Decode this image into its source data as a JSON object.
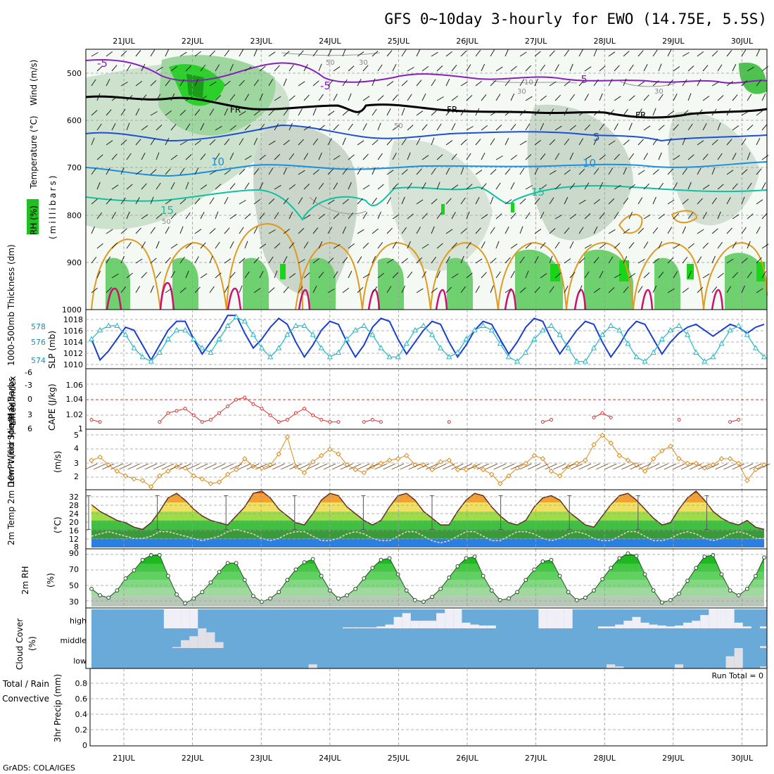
{
  "title": "GFS 0~10day 3-hourly for EWO (14.75E, 5.5S)",
  "credit": "GrADS: COLA/IGES",
  "dates": [
    "21JUL",
    "22JUL",
    "23JUL",
    "24JUL",
    "25JUL",
    "26JUL",
    "27JUL",
    "28JUL",
    "29JUL",
    "30JUL"
  ],
  "colors": {
    "purple": "#8a1fc0",
    "fr": "#000000",
    "blue5": "#1e4fd6",
    "blue10": "#1a8fe0",
    "teal15": "#10c0a0",
    "orange": "#e09a20",
    "magenta": "#cc1070",
    "rh_dark": "#20c020",
    "rh_mid": "#7cd67c",
    "rh_light": "#dcefdc",
    "slp": "#1a3fd0",
    "thick": "#20b8c8",
    "li": "#e03030",
    "wind": "#e08a1a",
    "cloud": "#6aaad8",
    "cloudlight": "#f0eef6"
  },
  "panels": {
    "upper": {
      "ylabel_rh": "RH (%)",
      "ylabel_temp": "Temperature (°C)",
      "ylabel_wind": "Wind (m/s)",
      "ylabel_units": "(millibars)",
      "yticks": [
        "500",
        "600",
        "700",
        "800",
        "900",
        "1000"
      ],
      "contour_labels": [
        "-5",
        "-5",
        "-5",
        "FR",
        "FR",
        "FR",
        "5",
        "10",
        "10",
        "15",
        "15",
        "50",
        "30",
        "10",
        "30",
        "50",
        "50",
        "30"
      ]
    },
    "thickness": {
      "ylabel_left": "1000-500mb Thickness (dm)",
      "ylabel_right": "SLP (mb)",
      "left_ticks": [
        "578",
        "576",
        "574"
      ],
      "right_ticks": [
        "1018",
        "1016",
        "1014",
        "1012",
        "1010"
      ]
    },
    "cape": {
      "ylabel_left": "Lifted Index",
      "ylabel_right": "CAPE (J/kg)",
      "left_ticks": [
        "-6",
        "-3",
        "0",
        "3",
        "6"
      ],
      "right_ticks": [
        "1.06",
        "1.04",
        "1.02",
        "1"
      ]
    },
    "wind10": {
      "ylabel": "10m Wind Speed & Barbs",
      "units": "(m/s)",
      "ticks": [
        "5",
        "4",
        "3",
        "2"
      ]
    },
    "temp2m": {
      "ylabel": "2m Temp 2m DewPt (6hr Min/Max)",
      "units": "(°C)",
      "ticks": [
        "32",
        "28",
        "24",
        "20",
        "16",
        "12",
        "8"
      ]
    },
    "rh2m": {
      "ylabel": "2m RH",
      "units": "(%)",
      "ticks": [
        "90",
        "70",
        "50",
        "30"
      ]
    },
    "cloud": {
      "ylabel": "Cloud Cover",
      "units": "(%)",
      "levels": [
        "high",
        "middle",
        "low"
      ]
    },
    "precip": {
      "ylabel_1": "Total / Rain",
      "ylabel_2": "Convective",
      "ylabel_3": "3hr Precip (mm)",
      "ticks": [
        "0.8",
        "0.6",
        "0.4",
        "0.2",
        "0"
      ],
      "run_total": "Run Total = 0"
    }
  },
  "chart_data": [
    {
      "type": "line",
      "title": "1000-500mb Thickness / SLP",
      "x_start": "20JUL 12Z",
      "x_step_hours": 3,
      "series": [
        {
          "name": "SLP (mb)",
          "ylim": [
            1010,
            1019
          ],
          "values": [
            1014.5,
            1011.0,
            1012.5,
            1014.5,
            1016.5,
            1016.0,
            1013.5,
            1011.0,
            1013.5,
            1016.0,
            1017.5,
            1017.5,
            1014.5,
            1012.0,
            1014.0,
            1016.0,
            1018.5,
            1018.5,
            1015.5,
            1013.0,
            1014.5,
            1016.5,
            1018.0,
            1017.0,
            1014.0,
            1011.5,
            1013.5,
            1016.0,
            1017.5,
            1017.0,
            1014.0,
            1011.5,
            1013.5,
            1016.5,
            1018.0,
            1017.5,
            1014.5,
            1012.0,
            1014.0,
            1016.0,
            1017.5,
            1017.0,
            1014.0,
            1011.5,
            1013.5,
            1016.0,
            1017.5,
            1017.0,
            1014.5,
            1012.0,
            1014.0,
            1016.5,
            1018.0,
            1017.5,
            1014.5,
            1012.0,
            1014.0,
            1016.0,
            1017.5,
            1017.0,
            1014.0,
            1011.5,
            1013.5,
            1016.0,
            1017.5,
            1017.0,
            1014.5,
            1012.0,
            1014.0,
            1015.5,
            1016.5,
            1017.0,
            1016.0,
            1015.0,
            1016.0,
            1017.0,
            1016.5,
            1015.5,
            1016.5,
            1017.0
          ]
        },
        {
          "name": "Thickness (dm)",
          "ylim": [
            573.5,
            579.5
          ],
          "values": [
            576.5,
            577.5,
            578.0,
            578.0,
            577.0,
            575.5,
            574.5,
            574.0,
            575.0,
            576.5,
            577.5,
            577.5,
            576.5,
            575.5,
            575.0,
            576.5,
            578.0,
            579.0,
            578.5,
            577.0,
            575.5,
            574.5,
            575.5,
            577.0,
            578.0,
            578.0,
            577.0,
            575.5,
            574.5,
            575.0,
            576.5,
            577.5,
            578.0,
            577.0,
            575.5,
            574.5,
            574.5,
            576.0,
            577.5,
            578.0,
            577.0,
            575.5,
            574.5,
            575.0,
            576.5,
            577.5,
            578.0,
            577.5,
            576.0,
            574.5,
            574.0,
            575.0,
            576.5,
            577.5,
            578.0,
            577.0,
            575.5,
            574.0,
            574.0,
            575.5,
            577.0,
            578.0,
            577.5,
            576.0,
            574.5,
            574.0,
            575.0,
            576.5,
            577.5,
            578.0,
            577.0,
            575.0,
            574.0,
            574.5,
            576.0,
            577.5,
            578.0,
            577.0,
            575.5,
            574.5
          ]
        }
      ]
    },
    {
      "type": "line",
      "title": "Lifted Index",
      "x_start": "20JUL 12Z",
      "x_step_hours": 3,
      "ylim": [
        6,
        -6
      ],
      "values": [
        4.5,
        5.0,
        6.0,
        6.0,
        6.0,
        6.0,
        6.0,
        6.0,
        5.0,
        3.0,
        2.5,
        2.0,
        3.5,
        5.0,
        4.5,
        3.0,
        1.5,
        0.0,
        -0.5,
        1.0,
        2.0,
        3.5,
        5.0,
        4.5,
        3.0,
        2.0,
        3.5,
        4.5,
        5.0,
        5.0,
        6.0,
        6.0,
        5.0,
        4.5,
        5.0,
        6.0,
        6.0,
        6.0,
        6.0,
        6.0,
        6.0,
        6.0,
        5.0,
        6.0,
        6.0,
        6.0,
        6.0,
        6.0,
        6.0,
        6.0,
        6.0,
        6.0,
        6.0,
        5.0,
        4.5,
        6.0,
        6.0,
        6.0,
        6.0,
        4.0,
        3.0,
        4.0,
        6.0,
        6.0,
        6.0,
        6.0,
        6.0,
        6.0,
        6.0,
        4.5,
        6.0,
        6.0,
        6.0,
        6.0,
        6.0,
        5.0,
        4.5,
        6.0,
        6.0,
        6.0
      ]
    },
    {
      "type": "line",
      "title": "10m Wind Speed (m/s)",
      "x_start": "20JUL 12Z",
      "x_step_hours": 3,
      "ylim": [
        1.5,
        5.2
      ],
      "values": [
        3.3,
        3.5,
        3.0,
        2.6,
        2.3,
        2.1,
        2.0,
        1.6,
        2.3,
        2.6,
        2.9,
        2.8,
        2.3,
        2.1,
        1.8,
        1.9,
        2.4,
        2.7,
        3.4,
        2.9,
        2.8,
        3.0,
        3.7,
        4.8,
        2.9,
        2.5,
        3.2,
        3.6,
        4.0,
        3.7,
        3.0,
        2.7,
        2.5,
        2.9,
        3.1,
        3.3,
        3.4,
        3.6,
        3.0,
        3.0,
        2.7,
        3.2,
        3.3,
        2.7,
        2.7,
        2.9,
        2.7,
        2.4,
        1.8,
        2.3,
        2.8,
        3.1,
        3.6,
        3.4,
        2.6,
        2.3,
        2.9,
        3.1,
        3.3,
        4.3,
        4.9,
        4.4,
        3.6,
        3.3,
        3.0,
        2.6,
        3.4,
        3.9,
        4.2,
        3.4,
        3.1,
        3.1,
        2.8,
        3.0,
        3.4,
        3.4,
        3.1,
        2.0,
        2.7,
        3.0
      ]
    },
    {
      "type": "area",
      "title": "2m Temp / DewPt (°C)",
      "x_start": "20JUL 12Z",
      "x_step_hours": 3,
      "ylim": [
        8,
        33
      ],
      "series": [
        {
          "name": "2m Temp",
          "values": [
            27,
            24,
            22,
            20,
            19,
            17,
            16,
            19,
            24,
            30,
            32,
            29,
            25,
            22,
            20,
            19,
            18,
            22,
            26,
            32,
            33,
            30,
            25,
            22,
            19,
            18,
            23,
            29,
            32,
            31,
            26,
            23,
            20,
            18,
            20,
            26,
            31,
            32,
            29,
            24,
            21,
            18,
            18,
            24,
            29,
            32,
            31,
            26,
            22,
            19,
            18,
            20,
            26,
            30,
            31,
            29,
            24,
            21,
            18,
            17,
            22,
            27,
            31,
            32,
            29,
            25,
            21,
            18,
            19,
            25,
            30,
            33,
            29,
            24,
            21,
            19,
            18,
            20,
            17,
            16
          ]
        },
        {
          "name": "2m DewPt",
          "values": [
            13,
            14,
            15,
            14,
            13,
            12,
            12,
            13,
            15,
            15,
            14,
            13,
            12,
            11,
            12,
            13,
            15,
            16,
            15,
            14,
            12,
            11,
            12,
            14,
            15,
            15,
            13,
            11,
            11,
            12,
            14,
            15,
            14,
            12,
            11,
            11,
            13,
            15,
            15,
            13,
            11,
            10,
            11,
            13,
            15,
            15,
            13,
            11,
            11,
            13,
            15,
            15,
            14,
            12,
            11,
            12,
            14,
            15,
            14,
            12,
            11,
            11,
            13,
            15,
            15,
            13,
            11,
            11,
            12,
            14,
            15,
            14,
            12,
            11,
            12,
            14,
            15,
            14,
            12,
            12
          ]
        }
      ]
    },
    {
      "type": "area",
      "title": "2m RH (%)",
      "x_start": "20JUL 12Z",
      "x_step_hours": 3,
      "ylim": [
        22,
        92
      ],
      "values": [
        44,
        36,
        33,
        42,
        57,
        67,
        80,
        86,
        86,
        60,
        37,
        26,
        32,
        40,
        52,
        65,
        76,
        76,
        55,
        35,
        28,
        32,
        40,
        55,
        68,
        77,
        81,
        60,
        42,
        32,
        36,
        44,
        57,
        70,
        80,
        82,
        62,
        42,
        30,
        28,
        34,
        44,
        58,
        72,
        82,
        84,
        60,
        42,
        30,
        32,
        40,
        55,
        68,
        78,
        80,
        60,
        40,
        30,
        33,
        42,
        56,
        70,
        82,
        88,
        85,
        62,
        42,
        27,
        30,
        38,
        54,
        70,
        84,
        86,
        62,
        42,
        36,
        44,
        60,
        83
      ]
    },
    {
      "type": "bar",
      "title": "Cloud Cover (%)",
      "x_start": "20JUL 12Z",
      "x_step_hours": 3,
      "ylim": [
        0,
        100
      ],
      "series": [
        {
          "name": "high",
          "values": [
            0,
            0,
            0,
            0,
            0,
            0,
            0,
            0,
            0,
            100,
            100,
            100,
            100,
            0,
            0,
            0,
            0,
            0,
            0,
            0,
            0,
            0,
            0,
            0,
            0,
            0,
            0,
            0,
            0,
            0,
            5,
            5,
            5,
            5,
            10,
            20,
            60,
            80,
            40,
            40,
            40,
            80,
            100,
            100,
            30,
            20,
            15,
            15,
            0,
            0,
            0,
            0,
            0,
            100,
            100,
            100,
            100,
            0,
            0,
            0,
            10,
            10,
            20,
            40,
            60,
            30,
            20,
            15,
            10,
            15,
            30,
            40,
            70,
            100,
            100,
            100,
            30,
            10,
            0,
            10
          ]
        },
        {
          "name": "middle",
          "values": [
            0,
            0,
            0,
            0,
            0,
            0,
            0,
            0,
            0,
            0,
            5,
            40,
            60,
            100,
            80,
            30,
            0,
            0,
            0,
            0,
            0,
            0,
            0,
            0,
            0,
            0,
            0,
            0,
            0,
            0,
            0,
            0,
            0,
            0,
            0,
            0,
            0,
            0,
            0,
            0,
            0,
            0,
            0,
            0,
            0,
            0,
            0,
            0,
            0,
            0,
            0,
            0,
            0,
            0,
            0,
            0,
            0,
            0,
            0,
            0,
            0,
            0,
            0,
            0,
            0,
            0,
            0,
            0,
            0,
            0,
            0,
            0,
            0,
            0,
            0,
            0,
            0,
            0,
            0,
            10
          ]
        },
        {
          "name": "low",
          "values": [
            0,
            0,
            0,
            0,
            0,
            0,
            0,
            0,
            0,
            0,
            0,
            0,
            0,
            0,
            0,
            0,
            0,
            0,
            0,
            0,
            0,
            0,
            0,
            0,
            0,
            0,
            20,
            0,
            0,
            0,
            0,
            0,
            0,
            0,
            0,
            0,
            0,
            0,
            0,
            0,
            0,
            0,
            0,
            0,
            0,
            0,
            0,
            0,
            0,
            0,
            0,
            0,
            0,
            0,
            0,
            0,
            0,
            0,
            0,
            0,
            0,
            20,
            10,
            0,
            0,
            0,
            0,
            0,
            0,
            20,
            0,
            0,
            0,
            0,
            0,
            60,
            100,
            0,
            0,
            10
          ]
        }
      ]
    },
    {
      "type": "bar",
      "title": "3hr Precip (mm)",
      "x_start": "20JUL 12Z",
      "x_step_hours": 3,
      "ylim": [
        0,
        0.9
      ],
      "values": []
    }
  ]
}
